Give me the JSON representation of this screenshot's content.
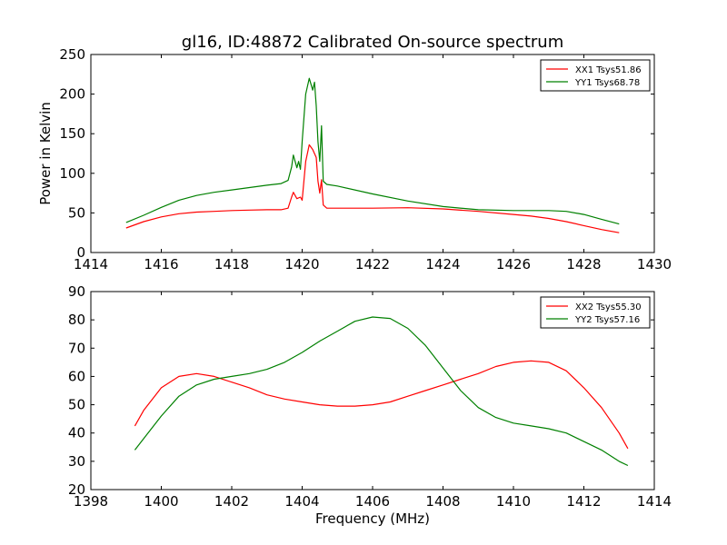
{
  "chart_data": [
    {
      "type": "line",
      "title": "gl16, ID:48872 Calibrated On-source spectrum",
      "xlabel": "",
      "ylabel": "Power in Kelvin",
      "xlim": [
        1414,
        1430
      ],
      "ylim": [
        0,
        250
      ],
      "xticks": [
        1414,
        1416,
        1418,
        1420,
        1422,
        1424,
        1426,
        1428,
        1430
      ],
      "yticks": [
        0,
        50,
        100,
        150,
        200,
        250
      ],
      "legend_position": "top-right",
      "series": [
        {
          "name": "XX1 Tsys51.86",
          "color": "#ff0000",
          "x": [
            1415.0,
            1415.5,
            1416.0,
            1416.5,
            1417.0,
            1417.5,
            1418.0,
            1418.5,
            1419.0,
            1419.4,
            1419.6,
            1419.7,
            1419.75,
            1419.85,
            1419.95,
            1420.0,
            1420.1,
            1420.2,
            1420.3,
            1420.4,
            1420.45,
            1420.5,
            1420.55,
            1420.6,
            1420.7,
            1421.0,
            1422.0,
            1423.0,
            1424.0,
            1425.0,
            1426.0,
            1426.5,
            1427.0,
            1427.5,
            1428.0,
            1428.5,
            1429.0
          ],
          "y": [
            31,
            39,
            45,
            49,
            51,
            52,
            53,
            53.5,
            54,
            54,
            56,
            70,
            76,
            68,
            70,
            66,
            115,
            136,
            130,
            120,
            90,
            75,
            92,
            60,
            56,
            56,
            56,
            56.5,
            55,
            52,
            48,
            46,
            43,
            39,
            34,
            29,
            25
          ]
        },
        {
          "name": "YY1 Tsys68.78",
          "color": "#008000",
          "x": [
            1415.0,
            1415.5,
            1416.0,
            1416.5,
            1417.0,
            1417.5,
            1418.0,
            1418.5,
            1419.0,
            1419.4,
            1419.6,
            1419.7,
            1419.75,
            1419.85,
            1419.9,
            1419.95,
            1420.0,
            1420.1,
            1420.2,
            1420.3,
            1420.35,
            1420.4,
            1420.45,
            1420.5,
            1420.55,
            1420.6,
            1420.7,
            1421.0,
            1422.0,
            1423.0,
            1424.0,
            1425.0,
            1426.0,
            1426.5,
            1427.0,
            1427.5,
            1428.0,
            1428.5,
            1429.0
          ],
          "y": [
            38,
            47,
            57,
            66,
            72,
            76,
            79,
            82,
            85,
            87,
            91,
            108,
            123,
            107,
            115,
            105,
            140,
            200,
            220,
            205,
            215,
            185,
            140,
            115,
            160,
            90,
            86,
            84,
            74,
            65,
            58,
            54,
            53,
            53,
            53,
            52,
            48,
            42,
            36
          ]
        }
      ]
    },
    {
      "type": "line",
      "title": "",
      "xlabel": "Frequency (MHz)",
      "ylabel": "",
      "xlim": [
        1398,
        1414
      ],
      "ylim": [
        20,
        90
      ],
      "xticks": [
        1398,
        1400,
        1402,
        1404,
        1406,
        1408,
        1410,
        1412,
        1414
      ],
      "yticks": [
        20,
        30,
        40,
        50,
        60,
        70,
        80,
        90
      ],
      "legend_position": "top-right",
      "series": [
        {
          "name": "XX2 Tsys55.30",
          "color": "#ff0000",
          "x": [
            1399.25,
            1399.5,
            1400.0,
            1400.5,
            1401.0,
            1401.5,
            1402.0,
            1402.5,
            1403.0,
            1403.5,
            1404.0,
            1404.5,
            1405.0,
            1405.5,
            1406.0,
            1406.5,
            1407.0,
            1407.5,
            1408.0,
            1408.5,
            1409.0,
            1409.5,
            1410.0,
            1410.5,
            1411.0,
            1411.5,
            1412.0,
            1412.5,
            1413.0,
            1413.25
          ],
          "y": [
            42.5,
            48,
            56,
            60,
            61,
            60,
            58,
            56,
            53.5,
            52,
            51,
            50,
            49.5,
            49.5,
            50,
            51,
            53,
            55,
            57,
            59,
            61,
            63.5,
            65,
            65.5,
            65,
            62,
            56,
            49,
            40,
            34.5
          ]
        },
        {
          "name": "YY2 Tsys57.16",
          "color": "#008000",
          "x": [
            1399.25,
            1399.5,
            1400.0,
            1400.5,
            1401.0,
            1401.5,
            1402.0,
            1402.5,
            1403.0,
            1403.5,
            1404.0,
            1404.5,
            1405.0,
            1405.5,
            1406.0,
            1406.5,
            1407.0,
            1407.5,
            1408.0,
            1408.5,
            1409.0,
            1409.5,
            1410.0,
            1410.5,
            1411.0,
            1411.5,
            1412.0,
            1412.5,
            1413.0,
            1413.25
          ],
          "y": [
            34,
            38,
            46,
            53,
            57,
            59,
            60,
            61,
            62.5,
            65,
            68.5,
            72.5,
            76,
            79.5,
            81,
            80.5,
            77,
            71,
            63,
            55,
            49,
            45.5,
            43.5,
            42.5,
            41.5,
            40,
            37,
            34,
            30,
            28.5
          ]
        }
      ]
    }
  ]
}
